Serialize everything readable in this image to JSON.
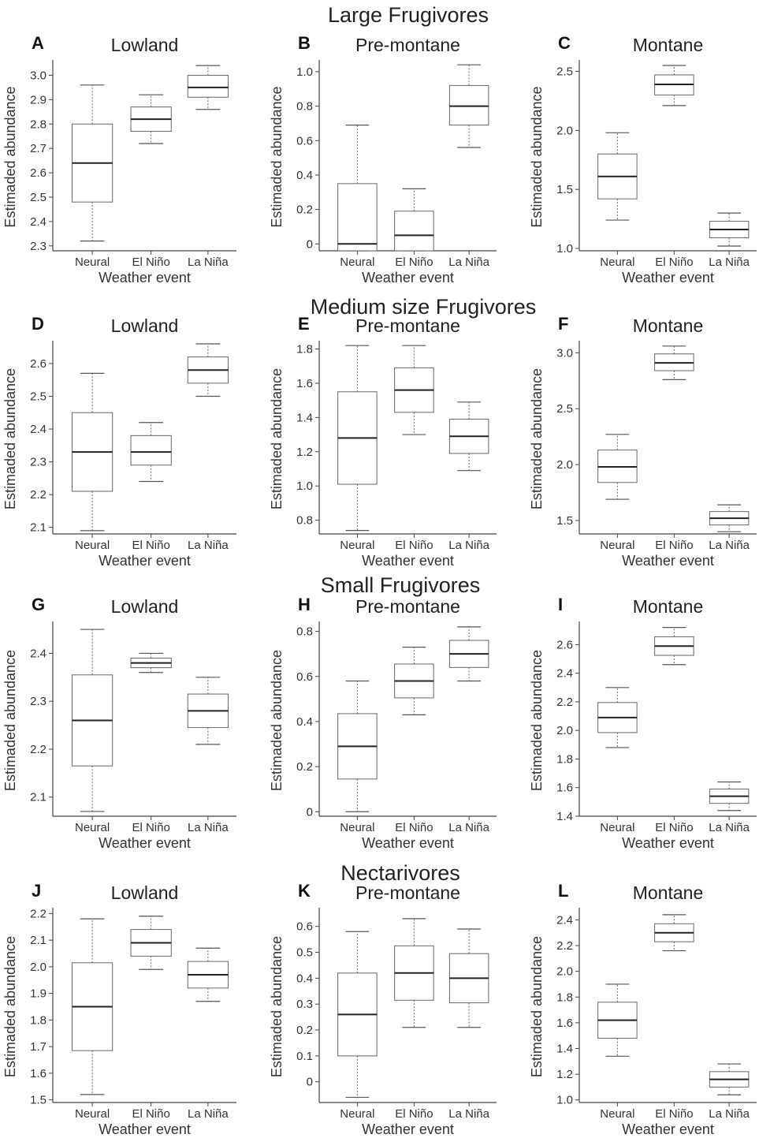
{
  "section_titles": [
    "Large Frugivores",
    "Medium size Frugivores",
    "Small Frugivores",
    "Nectarivores"
  ],
  "chart_data": [
    {
      "letter": "A",
      "title": "Lowland",
      "type": "box",
      "xlabel": "Weather event",
      "ylabel": "Estimaded abundance",
      "categories": [
        "Neural",
        "El Niño",
        "La Niña"
      ],
      "ylim": [
        2.28,
        3.05
      ],
      "yticks": [
        2.3,
        2.4,
        2.5,
        2.6,
        2.7,
        2.8,
        2.9,
        3.0
      ],
      "ytick_labels": [
        "2.3",
        "2.4",
        "2.5",
        "2.6",
        "2.7",
        "2.8",
        "2.9",
        "3.0"
      ],
      "boxes": [
        {
          "min": 2.32,
          "q1": 2.48,
          "median": 2.64,
          "q3": 2.8,
          "max": 2.96
        },
        {
          "min": 2.72,
          "q1": 2.77,
          "median": 2.82,
          "q3": 2.87,
          "max": 2.92
        },
        {
          "min": 2.86,
          "q1": 2.91,
          "median": 2.95,
          "q3": 3.0,
          "max": 3.04
        }
      ]
    },
    {
      "letter": "B",
      "title": "Pre-montane",
      "type": "box",
      "xlabel": "Weather event",
      "ylabel": "Estimaded abundance",
      "categories": [
        "Neural",
        "El Niño",
        "La Niña"
      ],
      "ylim": [
        -0.04,
        1.05
      ],
      "yticks": [
        0,
        0.2,
        0.4,
        0.6,
        0.8,
        1.0
      ],
      "ytick_labels": [
        "0",
        "0.2",
        "0.4",
        "0.6",
        "0.8",
        "1.0"
      ],
      "boxes": [
        {
          "min": -0.04,
          "q1": -0.04,
          "median": 0.0,
          "q3": 0.35,
          "max": 0.69
        },
        {
          "min": -0.04,
          "q1": -0.04,
          "median": 0.05,
          "q3": 0.19,
          "max": 0.32
        },
        {
          "min": 0.56,
          "q1": 0.69,
          "median": 0.8,
          "q3": 0.92,
          "max": 1.04
        }
      ]
    },
    {
      "letter": "C",
      "title": "Montane",
      "type": "box",
      "xlabel": "Weather event",
      "ylabel": "Estimaded abundance",
      "categories": [
        "Neural",
        "El Niño",
        "La Niña"
      ],
      "ylim": [
        0.98,
        2.57
      ],
      "yticks": [
        1.0,
        1.5,
        2.0,
        2.5
      ],
      "ytick_labels": [
        "1.0",
        "1.5",
        "2.0",
        "2.5"
      ],
      "boxes": [
        {
          "min": 1.24,
          "q1": 1.42,
          "median": 1.61,
          "q3": 1.8,
          "max": 1.98
        },
        {
          "min": 2.21,
          "q1": 2.3,
          "median": 2.39,
          "q3": 2.47,
          "max": 2.55
        },
        {
          "min": 1.02,
          "q1": 1.09,
          "median": 1.16,
          "q3": 1.23,
          "max": 1.3
        }
      ]
    },
    {
      "letter": "D",
      "title": "Lowland",
      "type": "box",
      "xlabel": "Weather event",
      "ylabel": "Estimaded abundance",
      "categories": [
        "Neural",
        "El Niño",
        "La Niña"
      ],
      "ylim": [
        2.08,
        2.66
      ],
      "yticks": [
        2.1,
        2.2,
        2.3,
        2.4,
        2.5,
        2.6
      ],
      "ytick_labels": [
        "2.1",
        "2.2",
        "2.3",
        "2.4",
        "2.5",
        "2.6"
      ],
      "boxes": [
        {
          "min": 2.09,
          "q1": 2.21,
          "median": 2.33,
          "q3": 2.45,
          "max": 2.57
        },
        {
          "min": 2.24,
          "q1": 2.29,
          "median": 2.33,
          "q3": 2.38,
          "max": 2.42
        },
        {
          "min": 2.5,
          "q1": 2.54,
          "median": 2.58,
          "q3": 2.62,
          "max": 2.66
        }
      ]
    },
    {
      "letter": "E",
      "title": "Pre-montane",
      "type": "box",
      "xlabel": "Weather event",
      "ylabel": "Estimaded abundance",
      "categories": [
        "Neural",
        "El Niño",
        "La Niña"
      ],
      "ylim": [
        0.72,
        1.83
      ],
      "yticks": [
        0.8,
        1.0,
        1.2,
        1.4,
        1.6,
        1.8
      ],
      "ytick_labels": [
        "0.8",
        "1.0",
        "1.2",
        "1.4",
        "1.6",
        "1.8"
      ],
      "boxes": [
        {
          "min": 0.74,
          "q1": 1.01,
          "median": 1.28,
          "q3": 1.55,
          "max": 1.82
        },
        {
          "min": 1.3,
          "q1": 1.43,
          "median": 1.56,
          "q3": 1.69,
          "max": 1.82
        },
        {
          "min": 1.09,
          "q1": 1.19,
          "median": 1.29,
          "q3": 1.39,
          "max": 1.49
        }
      ]
    },
    {
      "letter": "F",
      "title": "Montane",
      "type": "box",
      "xlabel": "Weather event",
      "ylabel": "Estimaded abundance",
      "categories": [
        "Neural",
        "El Niño",
        "La Niña"
      ],
      "ylim": [
        1.38,
        3.08
      ],
      "yticks": [
        1.5,
        2.0,
        2.5,
        3.0
      ],
      "ytick_labels": [
        "1.5",
        "2.0",
        "2.5",
        "3.0"
      ],
      "boxes": [
        {
          "min": 1.69,
          "q1": 1.84,
          "median": 1.98,
          "q3": 2.13,
          "max": 2.27
        },
        {
          "min": 2.76,
          "q1": 2.84,
          "median": 2.91,
          "q3": 2.99,
          "max": 3.06
        },
        {
          "min": 1.4,
          "q1": 1.46,
          "median": 1.52,
          "q3": 1.58,
          "max": 1.64
        }
      ]
    },
    {
      "letter": "G",
      "title": "Lowland",
      "type": "box",
      "xlabel": "Weather event",
      "ylabel": "Estimaded abundance",
      "categories": [
        "Neural",
        "El Niño",
        "La Niña"
      ],
      "ylim": [
        2.06,
        2.46
      ],
      "yticks": [
        2.1,
        2.2,
        2.3,
        2.4
      ],
      "ytick_labels": [
        "2.1",
        "2.2",
        "2.3",
        "2.4"
      ],
      "boxes": [
        {
          "min": 2.07,
          "q1": 2.165,
          "median": 2.26,
          "q3": 2.355,
          "max": 2.45
        },
        {
          "min": 2.36,
          "q1": 2.37,
          "median": 2.38,
          "q3": 2.39,
          "max": 2.4
        },
        {
          "min": 2.21,
          "q1": 2.245,
          "median": 2.28,
          "q3": 2.315,
          "max": 2.35
        }
      ]
    },
    {
      "letter": "H",
      "title": "Pre-montane",
      "type": "box",
      "xlabel": "Weather event",
      "ylabel": "Estimaded abundance",
      "categories": [
        "Neural",
        "El Niño",
        "La Niña"
      ],
      "ylim": [
        -0.02,
        0.83
      ],
      "yticks": [
        0,
        0.2,
        0.4,
        0.6,
        0.8
      ],
      "ytick_labels": [
        "0",
        "0.2",
        "0.4",
        "0.6",
        "0.8"
      ],
      "boxes": [
        {
          "min": 0.0,
          "q1": 0.145,
          "median": 0.29,
          "q3": 0.435,
          "max": 0.58
        },
        {
          "min": 0.43,
          "q1": 0.505,
          "median": 0.58,
          "q3": 0.655,
          "max": 0.73
        },
        {
          "min": 0.58,
          "q1": 0.64,
          "median": 0.7,
          "q3": 0.76,
          "max": 0.82
        }
      ]
    },
    {
      "letter": "I",
      "title": "Montane",
      "type": "box",
      "xlabel": "Weather event",
      "ylabel": "Estimaded abundance",
      "categories": [
        "Neural",
        "El Niño",
        "La Niña"
      ],
      "ylim": [
        1.4,
        2.74
      ],
      "yticks": [
        1.4,
        1.6,
        1.8,
        2.0,
        2.2,
        2.4,
        2.6
      ],
      "ytick_labels": [
        "1.4",
        "1.6",
        "1.8",
        "2.0",
        "2.2",
        "2.4",
        "2.6"
      ],
      "boxes": [
        {
          "min": 1.88,
          "q1": 1.985,
          "median": 2.09,
          "q3": 2.195,
          "max": 2.3
        },
        {
          "min": 2.46,
          "q1": 2.525,
          "median": 2.59,
          "q3": 2.655,
          "max": 2.72
        },
        {
          "min": 1.44,
          "q1": 1.49,
          "median": 1.54,
          "q3": 1.59,
          "max": 1.64
        }
      ]
    },
    {
      "letter": "J",
      "title": "Lowland",
      "type": "box",
      "xlabel": "Weather event",
      "ylabel": "Estimaded abundance",
      "categories": [
        "Neural",
        "El Niño",
        "La Niña"
      ],
      "ylim": [
        1.49,
        2.21
      ],
      "yticks": [
        1.5,
        1.6,
        1.7,
        1.8,
        1.9,
        2.0,
        2.1,
        2.2
      ],
      "ytick_labels": [
        "1.5",
        "1.6",
        "1.7",
        "1.8",
        "1.9",
        "2.0",
        "2.1",
        "2.2"
      ],
      "boxes": [
        {
          "min": 1.52,
          "q1": 1.685,
          "median": 1.85,
          "q3": 2.015,
          "max": 2.18
        },
        {
          "min": 1.99,
          "q1": 2.04,
          "median": 2.09,
          "q3": 2.14,
          "max": 2.19
        },
        {
          "min": 1.87,
          "q1": 1.92,
          "median": 1.97,
          "q3": 2.02,
          "max": 2.07
        }
      ]
    },
    {
      "letter": "K",
      "title": "Pre-montane",
      "type": "box",
      "xlabel": "Weather event",
      "ylabel": "Estimaded abundance",
      "categories": [
        "Neural",
        "El Niño",
        "La Niña"
      ],
      "ylim": [
        -0.08,
        0.66
      ],
      "yticks": [
        0,
        0.1,
        0.2,
        0.3,
        0.4,
        0.5,
        0.6
      ],
      "ytick_labels": [
        "0",
        "0.1",
        "0.2",
        "0.3",
        "0.4",
        "0.5",
        "0.6"
      ],
      "boxes": [
        {
          "min": -0.06,
          "q1": 0.1,
          "median": 0.26,
          "q3": 0.42,
          "max": 0.58
        },
        {
          "min": 0.21,
          "q1": 0.315,
          "median": 0.42,
          "q3": 0.525,
          "max": 0.63
        },
        {
          "min": 0.21,
          "q1": 0.305,
          "median": 0.4,
          "q3": 0.495,
          "max": 0.59
        }
      ]
    },
    {
      "letter": "L",
      "title": "Montane",
      "type": "box",
      "xlabel": "Weather event",
      "ylabel": "Estimaded abundance",
      "categories": [
        "Neural",
        "El Niño",
        "La Niña"
      ],
      "ylim": [
        0.98,
        2.47
      ],
      "yticks": [
        1.0,
        1.2,
        1.4,
        1.6,
        1.8,
        2.0,
        2.2,
        2.4
      ],
      "ytick_labels": [
        "1.0",
        "1.2",
        "1.4",
        "1.6",
        "1.8",
        "2.0",
        "2.2",
        "2.4"
      ],
      "boxes": [
        {
          "min": 1.34,
          "q1": 1.48,
          "median": 1.62,
          "q3": 1.76,
          "max": 1.9
        },
        {
          "min": 2.16,
          "q1": 2.23,
          "median": 2.3,
          "q3": 2.37,
          "max": 2.44
        },
        {
          "min": 1.04,
          "q1": 1.1,
          "median": 1.16,
          "q3": 1.22,
          "max": 1.28
        }
      ]
    }
  ]
}
